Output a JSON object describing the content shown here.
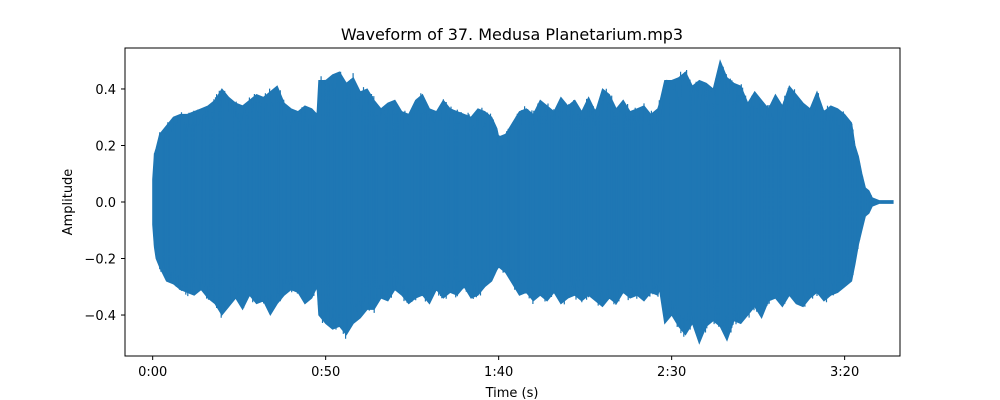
{
  "chart_data": {
    "type": "area",
    "title": "Waveform of 37. Medusa Planetarium.mp3",
    "xlabel": "Time (s)",
    "ylabel": "Amplitude",
    "xlim": [
      -8,
      216
    ],
    "ylim": [
      -0.5,
      0.5
    ],
    "grid": false,
    "legend": "none",
    "color": "#1f77b4",
    "x_ticks": [
      {
        "value": 0,
        "label": "0:00"
      },
      {
        "value": 50,
        "label": "0:50"
      },
      {
        "value": 100,
        "label": "1:40"
      },
      {
        "value": 150,
        "label": "2:30"
      },
      {
        "value": 200,
        "label": "3:20"
      }
    ],
    "y_ticks": [
      {
        "value": -0.4,
        "label": "−0.4"
      },
      {
        "value": -0.2,
        "label": "−0.2"
      },
      {
        "value": 0.0,
        "label": "0.0"
      },
      {
        "value": 0.2,
        "label": "0.2"
      },
      {
        "value": 0.4,
        "label": "0.4"
      }
    ],
    "series": [
      {
        "x": [
          0,
          0.5,
          1,
          2,
          4,
          6,
          8,
          10,
          12,
          14,
          16,
          18,
          20,
          22,
          24,
          26,
          28,
          30,
          32,
          34,
          36,
          38,
          40,
          42,
          44,
          46,
          47.5,
          48,
          50,
          52,
          54,
          56,
          58,
          60,
          62,
          64,
          66,
          68,
          70,
          72,
          74,
          76,
          78,
          80,
          82,
          84,
          86,
          88,
          90,
          92,
          94,
          96,
          98,
          99.5,
          100,
          102,
          104,
          106,
          108,
          110,
          112,
          114,
          116,
          118,
          120,
          122,
          124,
          126,
          128,
          130,
          132,
          134,
          136,
          138,
          140,
          142,
          144,
          146,
          146.5,
          148,
          150,
          152,
          154,
          156,
          158,
          160,
          162,
          164,
          166,
          168,
          170,
          172,
          174,
          176,
          178,
          180,
          182,
          184,
          186,
          188,
          190,
          192,
          194,
          196,
          198,
          200,
          202,
          203,
          204,
          205,
          206,
          207,
          208,
          209,
          210,
          212,
          214
        ],
        "upper": [
          0.08,
          0.17,
          0.19,
          0.24,
          0.27,
          0.3,
          0.31,
          0.31,
          0.32,
          0.33,
          0.34,
          0.36,
          0.4,
          0.37,
          0.35,
          0.34,
          0.36,
          0.38,
          0.37,
          0.39,
          0.41,
          0.35,
          0.33,
          0.32,
          0.34,
          0.33,
          0.31,
          0.43,
          0.43,
          0.45,
          0.46,
          0.42,
          0.44,
          0.39,
          0.4,
          0.36,
          0.33,
          0.35,
          0.36,
          0.32,
          0.31,
          0.36,
          0.38,
          0.33,
          0.32,
          0.36,
          0.33,
          0.32,
          0.31,
          0.3,
          0.33,
          0.32,
          0.3,
          0.26,
          0.23,
          0.24,
          0.28,
          0.32,
          0.33,
          0.31,
          0.36,
          0.34,
          0.32,
          0.37,
          0.34,
          0.36,
          0.32,
          0.37,
          0.32,
          0.4,
          0.38,
          0.33,
          0.36,
          0.32,
          0.33,
          0.34,
          0.31,
          0.33,
          0.35,
          0.43,
          0.43,
          0.44,
          0.46,
          0.41,
          0.43,
          0.42,
          0.4,
          0.5,
          0.44,
          0.42,
          0.41,
          0.35,
          0.39,
          0.36,
          0.33,
          0.38,
          0.34,
          0.41,
          0.38,
          0.35,
          0.33,
          0.39,
          0.32,
          0.34,
          0.33,
          0.31,
          0.28,
          0.2,
          0.16,
          0.1,
          0.05,
          0.04,
          0.015,
          0.01,
          0.005,
          0.005,
          0.005
        ],
        "lower": [
          -0.08,
          -0.16,
          -0.2,
          -0.23,
          -0.28,
          -0.29,
          -0.31,
          -0.32,
          -0.33,
          -0.31,
          -0.34,
          -0.36,
          -0.4,
          -0.37,
          -0.34,
          -0.38,
          -0.33,
          -0.36,
          -0.35,
          -0.4,
          -0.36,
          -0.33,
          -0.31,
          -0.32,
          -0.36,
          -0.34,
          -0.3,
          -0.4,
          -0.43,
          -0.45,
          -0.44,
          -0.47,
          -0.43,
          -0.41,
          -0.38,
          -0.38,
          -0.34,
          -0.35,
          -0.31,
          -0.33,
          -0.36,
          -0.34,
          -0.33,
          -0.36,
          -0.31,
          -0.34,
          -0.32,
          -0.33,
          -0.3,
          -0.34,
          -0.33,
          -0.3,
          -0.28,
          -0.24,
          -0.23,
          -0.25,
          -0.29,
          -0.33,
          -0.32,
          -0.35,
          -0.33,
          -0.35,
          -0.32,
          -0.36,
          -0.34,
          -0.33,
          -0.35,
          -0.33,
          -0.35,
          -0.37,
          -0.34,
          -0.36,
          -0.32,
          -0.34,
          -0.33,
          -0.35,
          -0.32,
          -0.33,
          -0.31,
          -0.43,
          -0.4,
          -0.44,
          -0.47,
          -0.43,
          -0.5,
          -0.44,
          -0.42,
          -0.44,
          -0.49,
          -0.42,
          -0.43,
          -0.4,
          -0.37,
          -0.41,
          -0.35,
          -0.34,
          -0.37,
          -0.33,
          -0.36,
          -0.37,
          -0.34,
          -0.32,
          -0.35,
          -0.33,
          -0.32,
          -0.3,
          -0.28,
          -0.22,
          -0.15,
          -0.1,
          -0.05,
          -0.04,
          -0.015,
          -0.01,
          -0.005,
          -0.005,
          -0.005
        ]
      }
    ]
  }
}
